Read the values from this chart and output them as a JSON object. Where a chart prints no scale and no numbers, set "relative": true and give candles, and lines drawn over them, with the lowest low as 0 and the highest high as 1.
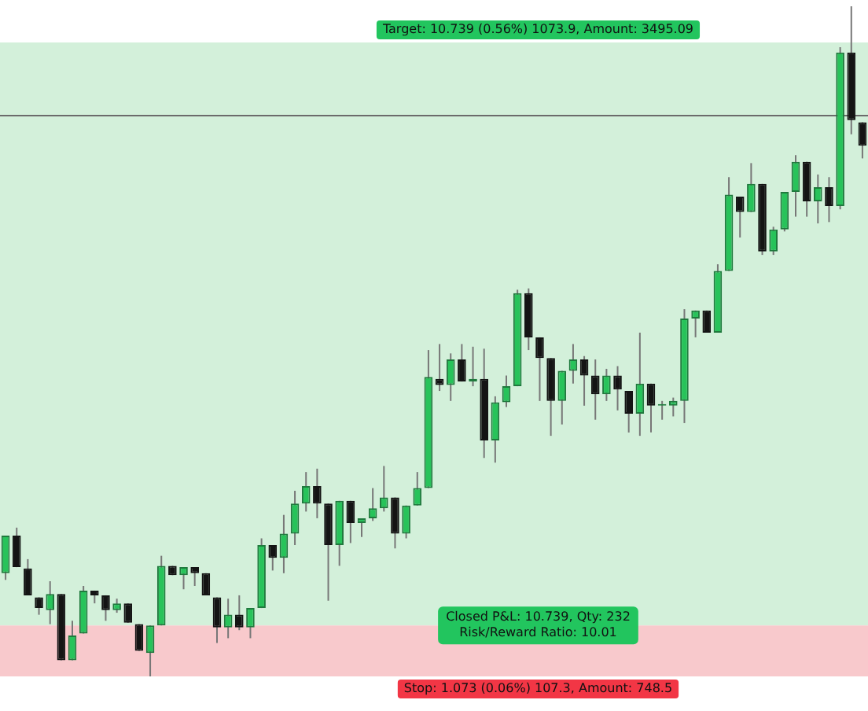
{
  "chart_data": {
    "type": "candlestick",
    "relative": true,
    "categories": [
      null,
      null,
      null,
      null,
      null,
      null,
      null,
      null,
      null,
      null,
      null,
      null,
      null,
      null,
      null,
      null,
      null,
      null,
      null,
      null,
      null,
      null,
      null,
      null,
      null,
      null,
      null,
      null,
      null,
      null,
      null,
      null,
      null,
      null,
      null,
      null,
      null,
      null,
      null,
      null,
      null,
      null,
      null,
      null,
      null,
      null,
      null,
      null,
      null,
      null,
      null,
      null,
      null,
      null,
      null,
      null,
      null,
      null,
      null,
      null,
      null,
      null,
      null,
      null,
      null,
      null,
      null,
      null,
      null,
      null,
      null,
      null,
      null,
      null,
      null,
      null,
      null,
      null
    ],
    "ohlc": [
      [
        0.154,
        0.21,
        0.144,
        0.21
      ],
      [
        0.21,
        0.222,
        0.163,
        0.163
      ],
      [
        0.161,
        0.175,
        0.121,
        0.121
      ],
      [
        0.118,
        0.118,
        0.092,
        0.102
      ],
      [
        0.099,
        0.142,
        0.078,
        0.123
      ],
      [
        0.123,
        0.123,
        0.024,
        0.024
      ],
      [
        0.024,
        0.083,
        0.024,
        0.061
      ],
      [
        0.064,
        0.135,
        0.064,
        0.128
      ],
      [
        0.128,
        0.128,
        0.109,
        0.121
      ],
      [
        0.121,
        0.121,
        0.083,
        0.099
      ],
      [
        0.099,
        0.116,
        0.095,
        0.109
      ],
      [
        0.109,
        0.109,
        0.08,
        0.08
      ],
      [
        0.078,
        0.078,
        0.038,
        0.038
      ],
      [
        0.035,
        0.076,
        0,
        0.076
      ],
      [
        0.076,
        0.18,
        0.076,
        0.165
      ],
      [
        0.165,
        0.165,
        0.151,
        0.151
      ],
      [
        0.151,
        0.163,
        0.13,
        0.163
      ],
      [
        0.163,
        0.163,
        0.135,
        0.154
      ],
      [
        0.154,
        0.154,
        0.121,
        0.121
      ],
      [
        0.118,
        0.118,
        0.05,
        0.073
      ],
      [
        0.073,
        0.116,
        0.057,
        0.092
      ],
      [
        0.092,
        0.121,
        0.069,
        0.073
      ],
      [
        0.073,
        0.102,
        0.057,
        0.102
      ],
      [
        0.102,
        0.206,
        0.102,
        0.196
      ],
      [
        0.196,
        0.196,
        0.158,
        0.177
      ],
      [
        0.177,
        0.241,
        0.154,
        0.213
      ],
      [
        0.213,
        0.277,
        0.196,
        0.258
      ],
      [
        0.258,
        0.305,
        0.246,
        0.284
      ],
      [
        0.284,
        0.31,
        0.236,
        0.258
      ],
      [
        0.258,
        0.258,
        0.113,
        0.196
      ],
      [
        0.196,
        0.262,
        0.165,
        0.262
      ],
      [
        0.262,
        0.262,
        0.199,
        0.229
      ],
      [
        0.229,
        0.236,
        0.208,
        0.236
      ],
      [
        0.236,
        0.281,
        0.232,
        0.251
      ],
      [
        0.251,
        0.314,
        0.246,
        0.267
      ],
      [
        0.267,
        0.267,
        0.191,
        0.213
      ],
      [
        0.213,
        0.255,
        0.206,
        0.255
      ],
      [
        0.255,
        0.305,
        0.255,
        0.281
      ],
      [
        0.281,
        0.487,
        0.281,
        0.447
      ],
      [
        0.444,
        0.496,
        0.426,
        0.435
      ],
      [
        0.435,
        0.482,
        0.411,
        0.473
      ],
      [
        0.473,
        0.496,
        0.44,
        0.44
      ],
      [
        0.44,
        0.492,
        0.433,
        0.444
      ],
      [
        0.444,
        0.489,
        0.326,
        0.352
      ],
      [
        0.352,
        0.418,
        0.319,
        0.409
      ],
      [
        0.409,
        0.449,
        0.402,
        0.433
      ],
      [
        0.433,
        0.577,
        0.433,
        0.572
      ],
      [
        0.572,
        0.579,
        0.487,
        0.506
      ],
      [
        0.506,
        0.506,
        0.411,
        0.475
      ],
      [
        0.475,
        0.475,
        0.359,
        0.411
      ],
      [
        0.411,
        0.456,
        0.376,
        0.456
      ],
      [
        0.456,
        0.496,
        0.437,
        0.473
      ],
      [
        0.473,
        0.478,
        0.404,
        0.449
      ],
      [
        0.449,
        0.473,
        0.383,
        0.421
      ],
      [
        0.421,
        0.459,
        0.411,
        0.449
      ],
      [
        0.449,
        0.463,
        0.397,
        0.428
      ],
      [
        0.426,
        0.426,
        0.364,
        0.392
      ],
      [
        0.392,
        0.513,
        0.359,
        0.437
      ],
      [
        0.437,
        0.437,
        0.364,
        0.404
      ],
      [
        0.404,
        0.411,
        0.383,
        0.404
      ],
      [
        0.404,
        0.416,
        0.388,
        0.411
      ],
      [
        0.411,
        0.548,
        0.378,
        0.534
      ],
      [
        0.534,
        0.546,
        0.506,
        0.546
      ],
      [
        0.546,
        0.546,
        0.513,
        0.513
      ],
      [
        0.513,
        0.615,
        0.513,
        0.605
      ],
      [
        0.605,
        0.745,
        0.605,
        0.719
      ],
      [
        0.716,
        0.716,
        0.655,
        0.693
      ],
      [
        0.693,
        0.766,
        0.693,
        0.735
      ],
      [
        0.735,
        0.735,
        0.629,
        0.634
      ],
      [
        0.634,
        0.671,
        0.629,
        0.667
      ],
      [
        0.667,
        0.723,
        0.664,
        0.723
      ],
      [
        0.723,
        0.778,
        0.686,
        0.768
      ],
      [
        0.768,
        0.768,
        0.686,
        0.709
      ],
      [
        0.709,
        0.749,
        0.676,
        0.73
      ],
      [
        0.73,
        0.745,
        0.678,
        0.702
      ],
      [
        0.702,
        0.939,
        0.697,
        0.931
      ],
      [
        0.931,
        1,
        0.809,
        0.83
      ],
      [
        0.827,
        0.827,
        0.773,
        0.792
      ]
    ],
    "bands": [
      {
        "axis": "y",
        "from": 0.076,
        "to": 0.946,
        "label": "Target: 10.739 (0.56%) 1073.9, Amount: 3495.09",
        "color": "#d3f0da"
      },
      {
        "axis": "y",
        "from": 0,
        "to": 0.076,
        "label": "Stop: 1.073 (0.06%) 107.3, Amount: 748.5",
        "color": "#f8c9cc"
      }
    ],
    "ref_lines": [
      {
        "axis": "y",
        "value": 0.837,
        "color": "#6b6b6b"
      }
    ],
    "annotations": [
      "Closed P&L: 10.739, Qty: 232",
      "Risk/Reward Ratio: 10.01"
    ]
  }
}
